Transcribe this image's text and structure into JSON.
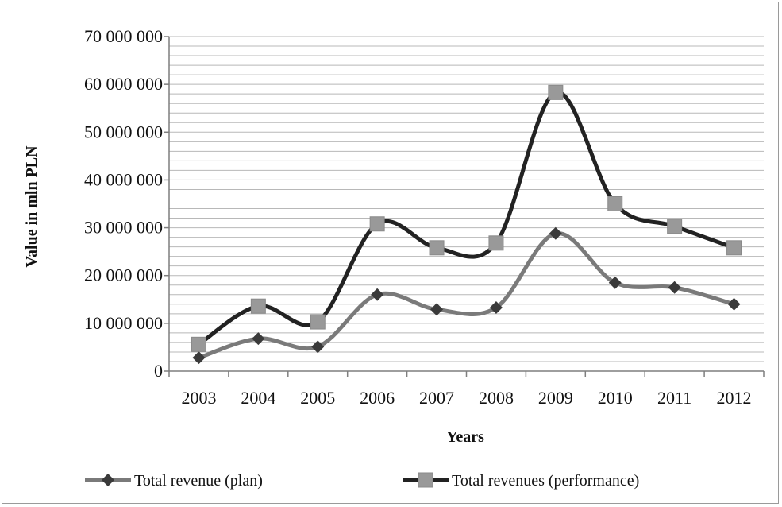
{
  "chart_data": {
    "type": "line",
    "title": "",
    "xlabel": "Years",
    "ylabel": "Value in mln PLN",
    "categories": [
      "2003",
      "2004",
      "2005",
      "2006",
      "2007",
      "2008",
      "2009",
      "2010",
      "2011",
      "2012"
    ],
    "ylim": [
      0,
      70000000
    ],
    "yticks": [
      0,
      10000000,
      20000000,
      30000000,
      40000000,
      50000000,
      60000000,
      70000000
    ],
    "ytick_labels": [
      "0",
      "10 000 000",
      "20 000 000",
      "30 000 000",
      "40 000 000",
      "50 000 000",
      "60 000 000",
      "70 000 000"
    ],
    "grid": true,
    "minor_grid_step": 2000000,
    "smooth": true,
    "legend_position": "bottom",
    "series": [
      {
        "name": "Total revenue (plan)",
        "marker": "diamond",
        "color": "#7a7a7a",
        "values": [
          2800000,
          6800000,
          5100000,
          16000000,
          12900000,
          13300000,
          28800000,
          18500000,
          17500000,
          14000000
        ]
      },
      {
        "name": "Total revenues (performance)",
        "marker": "square",
        "color": "#222222",
        "marker_color": "#999999",
        "values": [
          5600000,
          13600000,
          10300000,
          30800000,
          25800000,
          26800000,
          58300000,
          35000000,
          30300000,
          25800000
        ]
      }
    ]
  }
}
